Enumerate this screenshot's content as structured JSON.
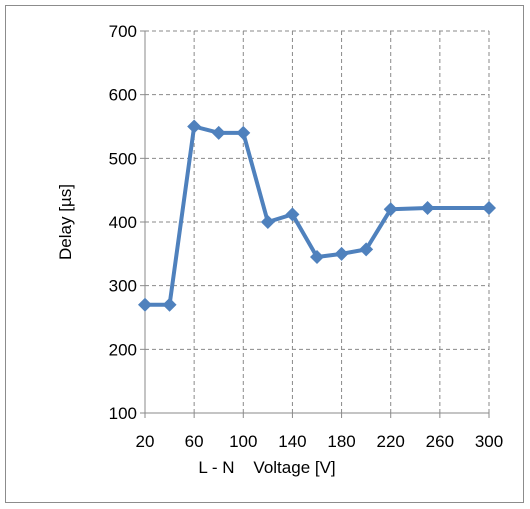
{
  "chart_data": {
    "type": "line",
    "title": "",
    "xlabel": "L - N    Voltage [V]",
    "ylabel": "Delay [µs]",
    "xlim": [
      20,
      300
    ],
    "ylim": [
      100,
      700
    ],
    "x_ticks": [
      "20",
      "60",
      "100",
      "140",
      "180",
      "220",
      "260",
      "300"
    ],
    "y_ticks": [
      "100",
      "200",
      "300",
      "400",
      "500",
      "600",
      "700"
    ],
    "grid": true,
    "legend": "none",
    "series_color": "#4f81bd",
    "series": [
      {
        "x": [
          20,
          40,
          60,
          80,
          100,
          120,
          140,
          160,
          180,
          200,
          220,
          250,
          300
        ],
        "y": [
          270,
          270,
          550,
          540,
          540,
          400,
          412,
          345,
          350,
          357,
          420,
          422,
          422
        ]
      }
    ]
  }
}
